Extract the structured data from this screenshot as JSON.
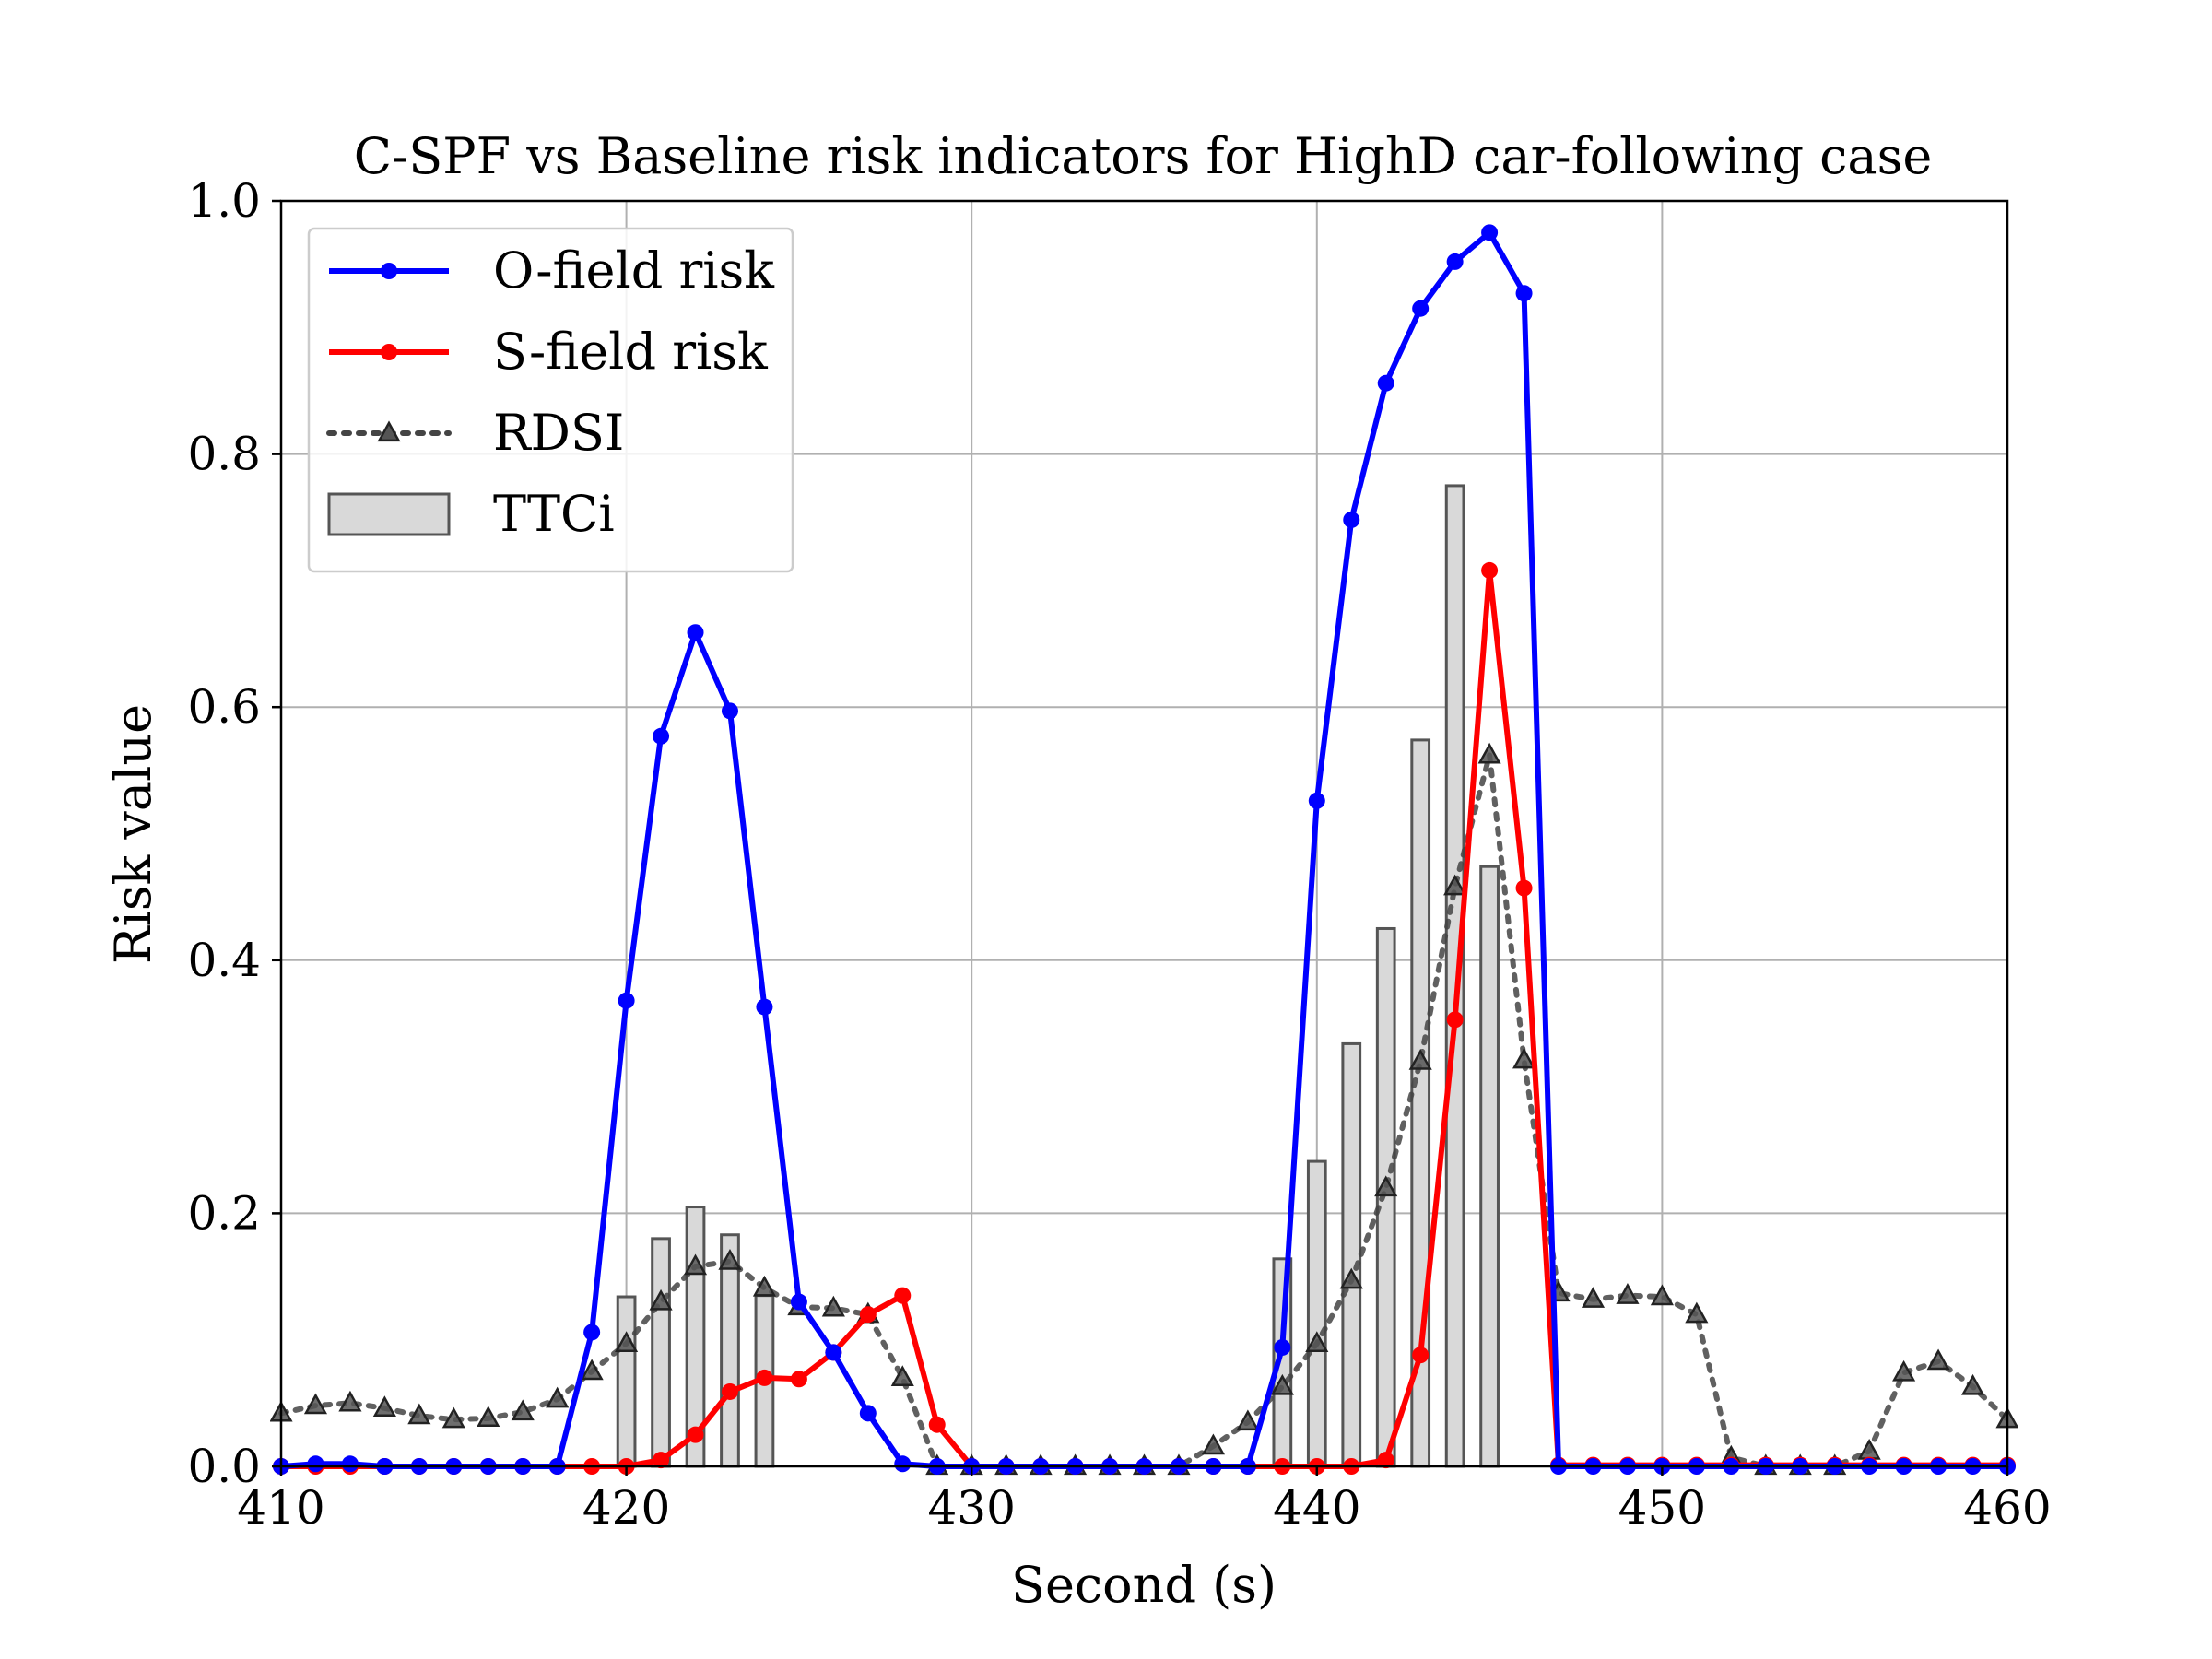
{
  "chart_data": {
    "type": "line",
    "title": "C-SPF vs Baseline risk indicators for HighD car-following case",
    "xlabel": "Second (s)",
    "ylabel": "Risk value",
    "xlim": [
      410,
      460
    ],
    "ylim": [
      0,
      1
    ],
    "xticks": [
      410,
      420,
      430,
      440,
      450,
      460
    ],
    "yticks": [
      0.0,
      0.2,
      0.4,
      0.6,
      0.8,
      1.0
    ],
    "xtick_labels": [
      "410",
      "420",
      "430",
      "440",
      "450",
      "460"
    ],
    "ytick_labels": [
      "0.0",
      "0.2",
      "0.4",
      "0.6",
      "0.8",
      "1.0"
    ],
    "grid": true,
    "legend_position": "top-left",
    "x": [
      410,
      411,
      412,
      413,
      414,
      415,
      416,
      417,
      418,
      419,
      420,
      421,
      422,
      423,
      424,
      425,
      426,
      427,
      428,
      429,
      430,
      431,
      432,
      433,
      434,
      435,
      436,
      437,
      438,
      439,
      440,
      441,
      442,
      443,
      444,
      445,
      446,
      447,
      448,
      449,
      450,
      451,
      452,
      453,
      454,
      455,
      456,
      457,
      458,
      459,
      460
    ],
    "series": [
      {
        "name": "O-field risk",
        "style": "line-circle",
        "color": "#0000ff",
        "values": [
          0.0,
          0.002,
          0.002,
          0.0,
          0.0,
          0.0,
          0.0,
          0.0,
          0.0,
          0.106,
          0.368,
          0.577,
          0.659,
          0.597,
          0.363,
          0.13,
          0.09,
          0.042,
          0.002,
          0.0,
          0.0,
          0.0,
          0.0,
          0.0,
          0.0,
          0.0,
          0.0,
          0.0,
          0.0,
          0.094,
          0.526,
          0.748,
          0.856,
          0.915,
          0.952,
          0.975,
          0.927,
          0.0,
          0.0,
          0.0,
          0.0,
          0.0,
          0.0,
          0.0,
          0.0,
          0.0,
          0.0,
          0.0,
          0.0,
          0.0,
          0.0
        ]
      },
      {
        "name": "S-field risk",
        "style": "line-circle",
        "color": "#ff0000",
        "values": [
          0.0,
          0.0,
          0.0,
          0.0,
          0.0,
          0.0,
          0.0,
          0.0,
          0.0,
          0.0,
          0.0,
          0.005,
          0.025,
          0.059,
          0.07,
          0.069,
          0.09,
          0.12,
          0.135,
          0.033,
          0.0,
          0.0,
          0.0,
          0.0,
          0.0,
          0.0,
          0.0,
          0.0,
          0.0,
          0.0,
          0.0,
          0.0,
          0.005,
          0.088,
          0.353,
          0.708,
          0.457,
          0.001,
          0.001,
          0.001,
          0.001,
          0.001,
          0.001,
          0.001,
          0.001,
          0.001,
          0.001,
          0.001,
          0.001,
          0.001,
          0.001
        ]
      },
      {
        "name": "RDSI",
        "style": "dotted-triangle",
        "color": "#444444",
        "values": [
          0.042,
          0.048,
          0.05,
          0.046,
          0.04,
          0.037,
          0.038,
          0.043,
          0.053,
          0.075,
          0.097,
          0.13,
          0.158,
          0.162,
          0.141,
          0.126,
          0.125,
          0.12,
          0.07,
          0.0,
          0.0,
          0.0,
          0.0,
          0.0,
          0.0,
          0.0,
          0.0,
          0.016,
          0.035,
          0.063,
          0.097,
          0.147,
          0.22,
          0.32,
          0.458,
          0.562,
          0.321,
          0.137,
          0.132,
          0.135,
          0.134,
          0.12,
          0.007,
          0.0,
          0.0,
          0.0,
          0.012,
          0.074,
          0.083,
          0.063,
          0.037
        ]
      }
    ],
    "bars": {
      "name": "TTCi",
      "color": "#d9d9d9",
      "edge_color": "#555555",
      "x": [
        420,
        421,
        422,
        423,
        424,
        439,
        440,
        441,
        442,
        443,
        444,
        445,
        446
      ],
      "values": [
        0.134,
        0.18,
        0.205,
        0.183,
        0.135,
        0.164,
        0.241,
        0.334,
        0.425,
        0.574,
        0.775,
        0.474,
        0.0
      ]
    }
  }
}
